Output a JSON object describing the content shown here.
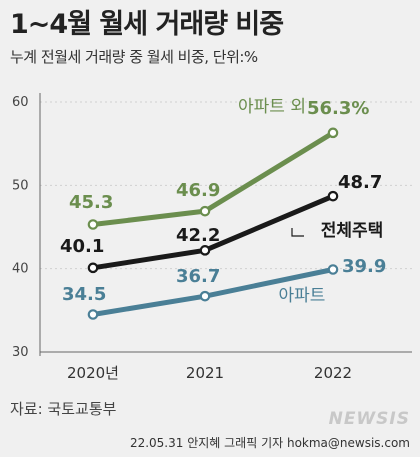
{
  "header": {
    "title": "1~4월 월세 거래량 비중",
    "subtitle": "누계 전월세 거래량 중 월세 비중, 단위:%"
  },
  "chart_data": {
    "type": "line",
    "categories": [
      "2020년",
      "2021",
      "2022"
    ],
    "yticks": [
      "30",
      "40",
      "50",
      "60"
    ],
    "ylim": [
      30,
      60
    ],
    "grid": true,
    "series": [
      {
        "name": "아파트 외",
        "values": [
          45.3,
          46.9,
          56.3
        ],
        "labels": [
          "45.3",
          "46.9",
          "56.3%"
        ],
        "color": "#6b8e4e"
      },
      {
        "name": "전체주택",
        "values": [
          40.1,
          42.2,
          48.7
        ],
        "labels": [
          "40.1",
          "42.2",
          "48.7"
        ],
        "color": "#1a1a1a"
      },
      {
        "name": "아파트",
        "values": [
          34.5,
          36.7,
          39.9
        ],
        "labels": [
          "34.5",
          "36.7",
          "39.9"
        ],
        "color": "#4a7f96"
      }
    ]
  },
  "footer": {
    "source": "자료: 국토교통부",
    "credit": "22.05.31 안지혜 그래픽 기자 hokma@newsis.com",
    "brand": "NEWSIS"
  }
}
